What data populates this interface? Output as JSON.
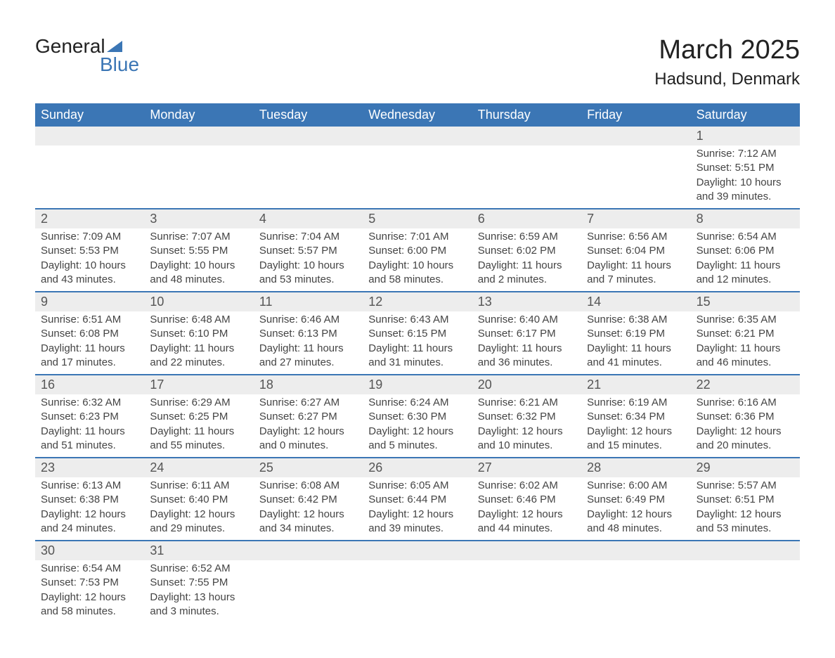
{
  "logo": {
    "text_top": "General",
    "text_bottom": "Blue",
    "triangle_color": "#3b76b5"
  },
  "title": "March 2025",
  "location": "Hadsund, Denmark",
  "colors": {
    "header_bg": "#3b76b5",
    "header_text": "#ffffff",
    "day_number_bg": "#ededed",
    "border": "#3b76b5",
    "text_primary": "#222222",
    "text_secondary": "#444444"
  },
  "weekdays": [
    "Sunday",
    "Monday",
    "Tuesday",
    "Wednesday",
    "Thursday",
    "Friday",
    "Saturday"
  ],
  "weeks": [
    [
      {
        "day": "",
        "sunrise": "",
        "sunset": "",
        "daylight": ""
      },
      {
        "day": "",
        "sunrise": "",
        "sunset": "",
        "daylight": ""
      },
      {
        "day": "",
        "sunrise": "",
        "sunset": "",
        "daylight": ""
      },
      {
        "day": "",
        "sunrise": "",
        "sunset": "",
        "daylight": ""
      },
      {
        "day": "",
        "sunrise": "",
        "sunset": "",
        "daylight": ""
      },
      {
        "day": "",
        "sunrise": "",
        "sunset": "",
        "daylight": ""
      },
      {
        "day": "1",
        "sunrise": "Sunrise: 7:12 AM",
        "sunset": "Sunset: 5:51 PM",
        "daylight": "Daylight: 10 hours and 39 minutes."
      }
    ],
    [
      {
        "day": "2",
        "sunrise": "Sunrise: 7:09 AM",
        "sunset": "Sunset: 5:53 PM",
        "daylight": "Daylight: 10 hours and 43 minutes."
      },
      {
        "day": "3",
        "sunrise": "Sunrise: 7:07 AM",
        "sunset": "Sunset: 5:55 PM",
        "daylight": "Daylight: 10 hours and 48 minutes."
      },
      {
        "day": "4",
        "sunrise": "Sunrise: 7:04 AM",
        "sunset": "Sunset: 5:57 PM",
        "daylight": "Daylight: 10 hours and 53 minutes."
      },
      {
        "day": "5",
        "sunrise": "Sunrise: 7:01 AM",
        "sunset": "Sunset: 6:00 PM",
        "daylight": "Daylight: 10 hours and 58 minutes."
      },
      {
        "day": "6",
        "sunrise": "Sunrise: 6:59 AM",
        "sunset": "Sunset: 6:02 PM",
        "daylight": "Daylight: 11 hours and 2 minutes."
      },
      {
        "day": "7",
        "sunrise": "Sunrise: 6:56 AM",
        "sunset": "Sunset: 6:04 PM",
        "daylight": "Daylight: 11 hours and 7 minutes."
      },
      {
        "day": "8",
        "sunrise": "Sunrise: 6:54 AM",
        "sunset": "Sunset: 6:06 PM",
        "daylight": "Daylight: 11 hours and 12 minutes."
      }
    ],
    [
      {
        "day": "9",
        "sunrise": "Sunrise: 6:51 AM",
        "sunset": "Sunset: 6:08 PM",
        "daylight": "Daylight: 11 hours and 17 minutes."
      },
      {
        "day": "10",
        "sunrise": "Sunrise: 6:48 AM",
        "sunset": "Sunset: 6:10 PM",
        "daylight": "Daylight: 11 hours and 22 minutes."
      },
      {
        "day": "11",
        "sunrise": "Sunrise: 6:46 AM",
        "sunset": "Sunset: 6:13 PM",
        "daylight": "Daylight: 11 hours and 27 minutes."
      },
      {
        "day": "12",
        "sunrise": "Sunrise: 6:43 AM",
        "sunset": "Sunset: 6:15 PM",
        "daylight": "Daylight: 11 hours and 31 minutes."
      },
      {
        "day": "13",
        "sunrise": "Sunrise: 6:40 AM",
        "sunset": "Sunset: 6:17 PM",
        "daylight": "Daylight: 11 hours and 36 minutes."
      },
      {
        "day": "14",
        "sunrise": "Sunrise: 6:38 AM",
        "sunset": "Sunset: 6:19 PM",
        "daylight": "Daylight: 11 hours and 41 minutes."
      },
      {
        "day": "15",
        "sunrise": "Sunrise: 6:35 AM",
        "sunset": "Sunset: 6:21 PM",
        "daylight": "Daylight: 11 hours and 46 minutes."
      }
    ],
    [
      {
        "day": "16",
        "sunrise": "Sunrise: 6:32 AM",
        "sunset": "Sunset: 6:23 PM",
        "daylight": "Daylight: 11 hours and 51 minutes."
      },
      {
        "day": "17",
        "sunrise": "Sunrise: 6:29 AM",
        "sunset": "Sunset: 6:25 PM",
        "daylight": "Daylight: 11 hours and 55 minutes."
      },
      {
        "day": "18",
        "sunrise": "Sunrise: 6:27 AM",
        "sunset": "Sunset: 6:27 PM",
        "daylight": "Daylight: 12 hours and 0 minutes."
      },
      {
        "day": "19",
        "sunrise": "Sunrise: 6:24 AM",
        "sunset": "Sunset: 6:30 PM",
        "daylight": "Daylight: 12 hours and 5 minutes."
      },
      {
        "day": "20",
        "sunrise": "Sunrise: 6:21 AM",
        "sunset": "Sunset: 6:32 PM",
        "daylight": "Daylight: 12 hours and 10 minutes."
      },
      {
        "day": "21",
        "sunrise": "Sunrise: 6:19 AM",
        "sunset": "Sunset: 6:34 PM",
        "daylight": "Daylight: 12 hours and 15 minutes."
      },
      {
        "day": "22",
        "sunrise": "Sunrise: 6:16 AM",
        "sunset": "Sunset: 6:36 PM",
        "daylight": "Daylight: 12 hours and 20 minutes."
      }
    ],
    [
      {
        "day": "23",
        "sunrise": "Sunrise: 6:13 AM",
        "sunset": "Sunset: 6:38 PM",
        "daylight": "Daylight: 12 hours and 24 minutes."
      },
      {
        "day": "24",
        "sunrise": "Sunrise: 6:11 AM",
        "sunset": "Sunset: 6:40 PM",
        "daylight": "Daylight: 12 hours and 29 minutes."
      },
      {
        "day": "25",
        "sunrise": "Sunrise: 6:08 AM",
        "sunset": "Sunset: 6:42 PM",
        "daylight": "Daylight: 12 hours and 34 minutes."
      },
      {
        "day": "26",
        "sunrise": "Sunrise: 6:05 AM",
        "sunset": "Sunset: 6:44 PM",
        "daylight": "Daylight: 12 hours and 39 minutes."
      },
      {
        "day": "27",
        "sunrise": "Sunrise: 6:02 AM",
        "sunset": "Sunset: 6:46 PM",
        "daylight": "Daylight: 12 hours and 44 minutes."
      },
      {
        "day": "28",
        "sunrise": "Sunrise: 6:00 AM",
        "sunset": "Sunset: 6:49 PM",
        "daylight": "Daylight: 12 hours and 48 minutes."
      },
      {
        "day": "29",
        "sunrise": "Sunrise: 5:57 AM",
        "sunset": "Sunset: 6:51 PM",
        "daylight": "Daylight: 12 hours and 53 minutes."
      }
    ],
    [
      {
        "day": "30",
        "sunrise": "Sunrise: 6:54 AM",
        "sunset": "Sunset: 7:53 PM",
        "daylight": "Daylight: 12 hours and 58 minutes."
      },
      {
        "day": "31",
        "sunrise": "Sunrise: 6:52 AM",
        "sunset": "Sunset: 7:55 PM",
        "daylight": "Daylight: 13 hours and 3 minutes."
      },
      {
        "day": "",
        "sunrise": "",
        "sunset": "",
        "daylight": ""
      },
      {
        "day": "",
        "sunrise": "",
        "sunset": "",
        "daylight": ""
      },
      {
        "day": "",
        "sunrise": "",
        "sunset": "",
        "daylight": ""
      },
      {
        "day": "",
        "sunrise": "",
        "sunset": "",
        "daylight": ""
      },
      {
        "day": "",
        "sunrise": "",
        "sunset": "",
        "daylight": ""
      }
    ]
  ]
}
